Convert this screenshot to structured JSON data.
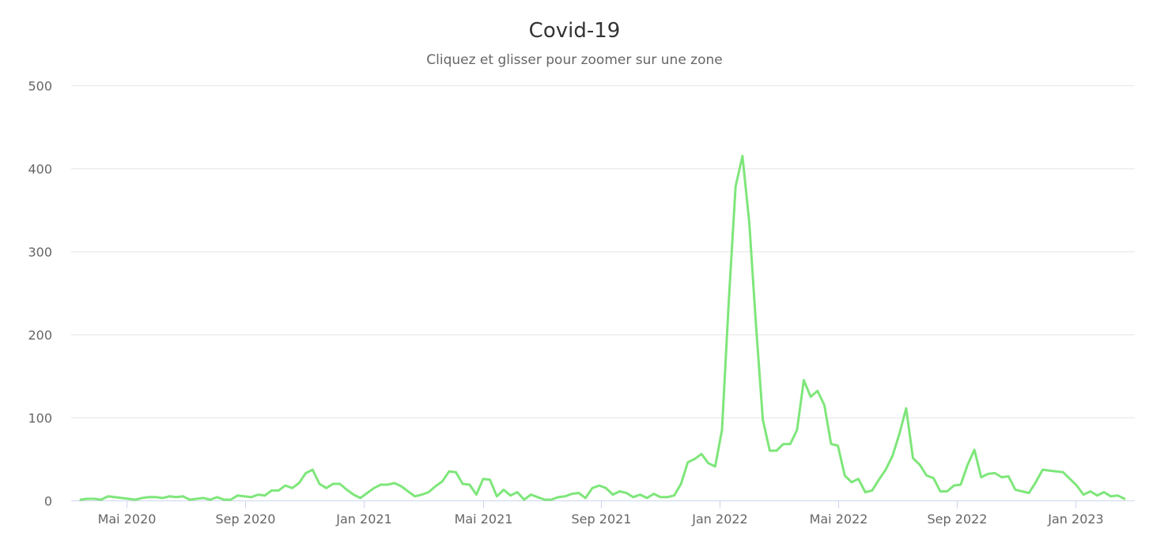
{
  "header": {
    "title": "Covid-19",
    "subtitle": "Cliquez et glisser pour zoomer sur une zone"
  },
  "colors": {
    "series": "#7ee67a",
    "grid": "#e6e6e6",
    "axis": "#ccd6eb",
    "text": "#666666",
    "title": "#333333"
  },
  "chart_data": {
    "type": "line",
    "title": "Covid-19",
    "subtitle": "Cliquez et glisser pour zoomer sur une zone",
    "xlabel": "",
    "ylabel": "",
    "ylim": [
      0,
      500
    ],
    "yticks": [
      0,
      100,
      200,
      300,
      400,
      500
    ],
    "xtick_labels": [
      "Mai 2020",
      "Sep 2020",
      "Jan 2021",
      "Mai 2021",
      "Sep 2021",
      "Jan 2022",
      "Mai 2022",
      "Sep 2022",
      "Jan 2023"
    ],
    "grid": true,
    "legend": false,
    "x_start": "2020-03-23",
    "x_interval": "weekly",
    "values": [
      1,
      2,
      2,
      1,
      5,
      4,
      3,
      2,
      1,
      3,
      4,
      4,
      3,
      5,
      4,
      5,
      1,
      2,
      3,
      1,
      4,
      1,
      1,
      6,
      5,
      4,
      7,
      6,
      12,
      12,
      18,
      15,
      21,
      33,
      37,
      20,
      15,
      20,
      20,
      13,
      7,
      3,
      9,
      15,
      19,
      19,
      21,
      17,
      11,
      5,
      7,
      10,
      17,
      23,
      35,
      34,
      20,
      19,
      7,
      26,
      25,
      5,
      13,
      6,
      10,
      1,
      7,
      4,
      1,
      1,
      4,
      5,
      8,
      9,
      3,
      15,
      18,
      15,
      7,
      11,
      9,
      4,
      7,
      3,
      8,
      4,
      4,
      6,
      20,
      46,
      50,
      56,
      45,
      41,
      85,
      240,
      378,
      415,
      335,
      210,
      97,
      60,
      60,
      68,
      68,
      85,
      145,
      125,
      132,
      115,
      68,
      66,
      30,
      22,
      26,
      10,
      12,
      25,
      37,
      54,
      80,
      111,
      51,
      43,
      30,
      27,
      11,
      11,
      18,
      19,
      43,
      61,
      28,
      32,
      33,
      28,
      29,
      13,
      11,
      9,
      22,
      37,
      36,
      35,
      34,
      26,
      18,
      7,
      11,
      6,
      10,
      5,
      6,
      2
    ]
  },
  "y_axis": {
    "labels": [
      "500",
      "400",
      "300",
      "200",
      "100",
      "0"
    ]
  },
  "x_axis": {
    "labels": [
      "Mai 2020",
      "Sep 2020",
      "Jan 2021",
      "Mai 2021",
      "Sep 2021",
      "Jan 2022",
      "Mai 2022",
      "Sep 2022",
      "Jan 2023"
    ]
  }
}
